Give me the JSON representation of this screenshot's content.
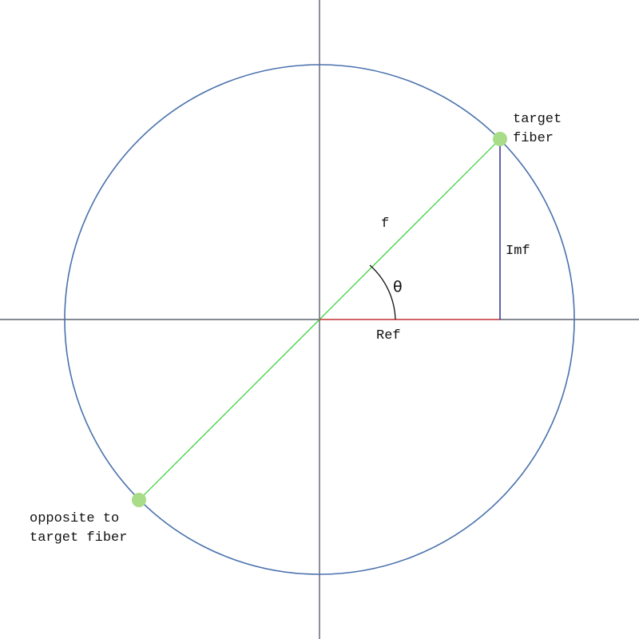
{
  "diagram": {
    "labels": {
      "target": [
        "target",
        "fiber"
      ],
      "opposite": [
        "opposite to",
        "target fiber"
      ],
      "vector": "f",
      "imag": "Imf",
      "real": "Ref",
      "angle": "θ"
    },
    "colors": {
      "circle": "#4a72ad",
      "axes": "#3f4456",
      "vector": "#2fd12f",
      "real_segment": "#d24040",
      "imag_segment": "#20208a",
      "points": "#a8dc88",
      "arc": "#111111"
    }
  }
}
